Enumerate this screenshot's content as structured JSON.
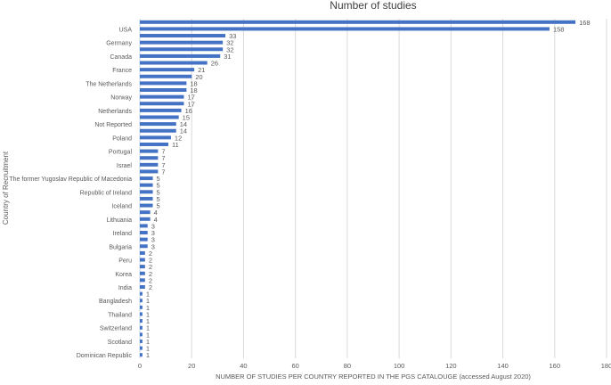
{
  "chart_data": {
    "type": "bar",
    "orientation": "horizontal",
    "title": "Number of studies",
    "xlabel": "NUMBER OF STUDIES PER COUNTRY REPORTED IN THE PGS CATALOUGE (accessed August 2020)",
    "ylabel": "Country of Recruitment",
    "xlim": [
      0,
      180
    ],
    "xticks": [
      0,
      20,
      40,
      60,
      80,
      100,
      120,
      140,
      160,
      180
    ],
    "grid": true,
    "bar_color": "#4472C4",
    "categories": [
      "",
      "USA",
      "",
      "Germany",
      "",
      "Canada",
      "",
      "France",
      "",
      "The Netherlands",
      "",
      "Norway",
      "",
      "Netherlands",
      "",
      "Not Reported",
      "",
      "Poland",
      "",
      "Portugal",
      "",
      "Israel",
      "",
      "The former Yugoslav Republic of Macedonia",
      "",
      "Republic of Ireland",
      "",
      "Iceland",
      "",
      "Lithuania",
      "",
      "Ireland",
      "",
      "Bulgaria",
      "",
      "Peru",
      "",
      "Korea",
      "",
      "India",
      "",
      "Bangladesh",
      "",
      "Thailand",
      "",
      "Switzerland",
      "",
      "Scotland",
      "",
      "Dominican Republic"
    ],
    "values": [
      168,
      158,
      33,
      32,
      32,
      31,
      26,
      21,
      20,
      18,
      18,
      17,
      17,
      16,
      15,
      14,
      14,
      12,
      11,
      7,
      7,
      7,
      7,
      5,
      5,
      5,
      5,
      5,
      4,
      4,
      3,
      3,
      3,
      3,
      2,
      2,
      2,
      2,
      2,
      2,
      1,
      1,
      1,
      1,
      1,
      1,
      1,
      1,
      1,
      1
    ]
  }
}
